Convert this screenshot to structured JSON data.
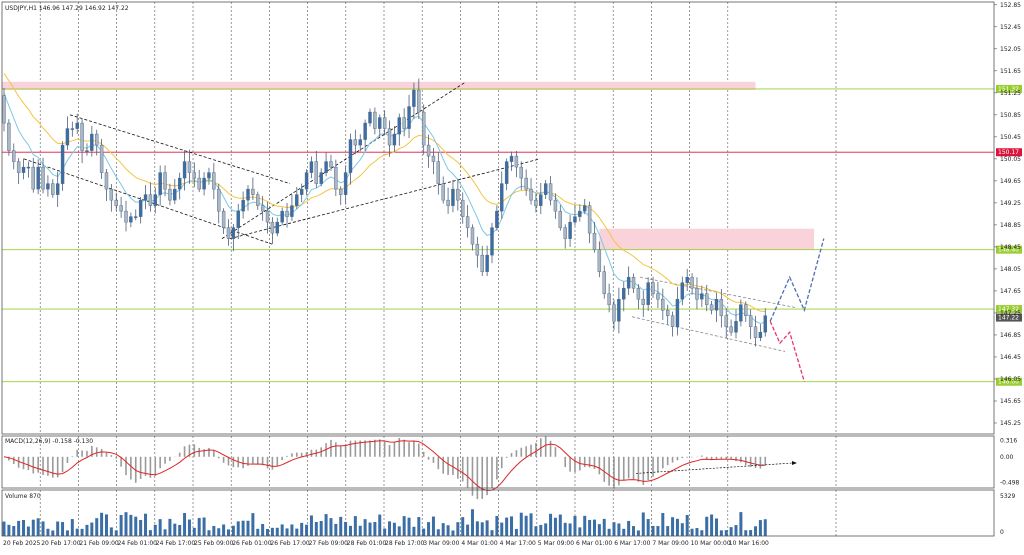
{
  "chart_data": {
    "type": "candlestick",
    "symbol_header": "USDJPY,H1  146.96 147.29 146.92 147.22",
    "x_axis": {
      "tick_labels": [
        "20 Feb 2025",
        "20 Feb 17:00",
        "21 Feb 09:00",
        "24 Feb 01:00",
        "24 Feb 17:00",
        "25 Feb 09:00",
        "26 Feb 01:00",
        "26 Feb 17:00",
        "27 Feb 09:00",
        "28 Feb 01:00",
        "28 Feb 17:00",
        "3 Mar 09:00",
        "4 Mar 01:00",
        "4 Mar 17:00",
        "5 Mar 09:00",
        "6 Mar 01:00",
        "6 Mar 17:00",
        "7 Mar 09:00",
        "10 Mar 00:00",
        "10 Mar 16:00"
      ]
    },
    "price_axis": {
      "range": [
        145.05,
        152.9
      ],
      "tick_labels": [
        "152.85",
        "152.45",
        "152.05",
        "151.65",
        "151.25",
        "150.85",
        "150.45",
        "150.05",
        "149.65",
        "149.25",
        "148.85",
        "148.45",
        "148.05",
        "147.65",
        "147.25",
        "146.85",
        "146.45",
        "146.05",
        "145.65",
        "145.25"
      ]
    },
    "horizontal_levels": [
      {
        "value": 151.32,
        "label": "151.32",
        "color": "#9acd32"
      },
      {
        "value": 150.17,
        "label": "150.17",
        "color": "#dc143c"
      },
      {
        "value": 148.4,
        "label": "148.40",
        "color": "#9acd32"
      },
      {
        "value": 147.32,
        "label": "147.32",
        "color": "#9acd32"
      },
      {
        "value": 146.0,
        "label": "146.00",
        "color": "#9acd32"
      }
    ],
    "current_price": {
      "value": 147.22,
      "label": "147.22"
    },
    "zones": [
      {
        "start_bar": 0,
        "end_bar": 154,
        "low": 151.3,
        "high": 151.45,
        "color": "#f9d2da"
      },
      {
        "start_bar": 122,
        "end_bar": 166,
        "low": 148.4,
        "high": 148.78,
        "color": "#f9d2da"
      }
    ],
    "candles": {
      "start_price": 151.2,
      "closes": [
        150.7,
        150.2,
        150.0,
        149.8,
        149.9,
        149.9,
        149.5,
        149.9,
        149.5,
        149.6,
        149.4,
        149.6,
        150.3,
        150.6,
        150.6,
        150.7,
        150.2,
        150.2,
        150.5,
        150.3,
        149.8,
        149.5,
        149.3,
        149.2,
        149.1,
        148.9,
        149.0,
        149.0,
        149.3,
        149.4,
        149.2,
        149.4,
        149.8,
        149.5,
        149.3,
        149.5,
        149.7,
        150.0,
        149.8,
        149.7,
        149.5,
        149.7,
        149.8,
        149.5,
        149.1,
        148.8,
        148.6,
        148.8,
        149.1,
        149.3,
        149.5,
        149.4,
        149.2,
        149.1,
        148.9,
        148.7,
        148.9,
        149.1,
        149.0,
        149.2,
        149.4,
        149.5,
        149.8,
        150.0,
        149.6,
        149.8,
        150.0,
        149.9,
        149.5,
        149.4,
        149.8,
        150.4,
        150.3,
        150.4,
        150.7,
        150.9,
        150.6,
        150.8,
        150.6,
        150.3,
        150.5,
        150.8,
        150.6,
        151.0,
        151.3,
        150.9,
        150.3,
        150.1,
        150.0,
        149.6,
        149.3,
        149.2,
        149.5,
        149.3,
        149.0,
        148.8,
        148.5,
        148.3,
        148.0,
        148.3,
        148.8,
        149.1,
        149.6,
        150.0,
        150.1,
        149.9,
        149.7,
        149.5,
        149.3,
        149.2,
        149.4,
        149.6,
        149.3,
        149.1,
        148.8,
        148.6,
        148.9,
        149.0,
        149.1,
        149.2,
        148.7,
        148.4,
        148.0,
        147.6,
        147.4,
        147.1,
        147.5,
        147.7,
        147.9,
        147.7,
        147.5,
        147.4,
        147.8,
        147.6,
        147.5,
        147.3,
        147.2,
        147.0,
        147.5,
        147.8,
        147.9,
        147.7,
        147.5,
        147.6,
        147.4,
        147.3,
        147.5,
        147.2,
        147.0,
        146.9,
        147.1,
        147.4,
        147.2,
        147.0,
        146.8,
        146.9,
        147.2
      ]
    },
    "moving_averages": [
      {
        "color": "#f4c542",
        "period": 50
      },
      {
        "color": "#7ec8e3",
        "period": 20
      }
    ],
    "forecast": {
      "bullish": {
        "color": "#4f6fb0",
        "points": [
          [
            157,
            147.1
          ],
          [
            161,
            147.9
          ],
          [
            164,
            147.3
          ],
          [
            168,
            148.6
          ]
        ]
      },
      "bearish": {
        "color": "#e8356b",
        "points": [
          [
            157,
            147.1
          ],
          [
            159,
            146.7
          ],
          [
            161,
            146.9
          ],
          [
            164,
            146.0
          ]
        ]
      }
    },
    "macd": {
      "label": "MACD(12,26,9) -0.158 -0.130",
      "tick_labels": [
        "0.316",
        "0.00",
        "-0.498"
      ],
      "range": [
        -0.6,
        0.4
      ]
    },
    "volume": {
      "label": "Volume 870",
      "tick_labels": [
        "5329",
        "0"
      ],
      "max": 5329
    }
  }
}
